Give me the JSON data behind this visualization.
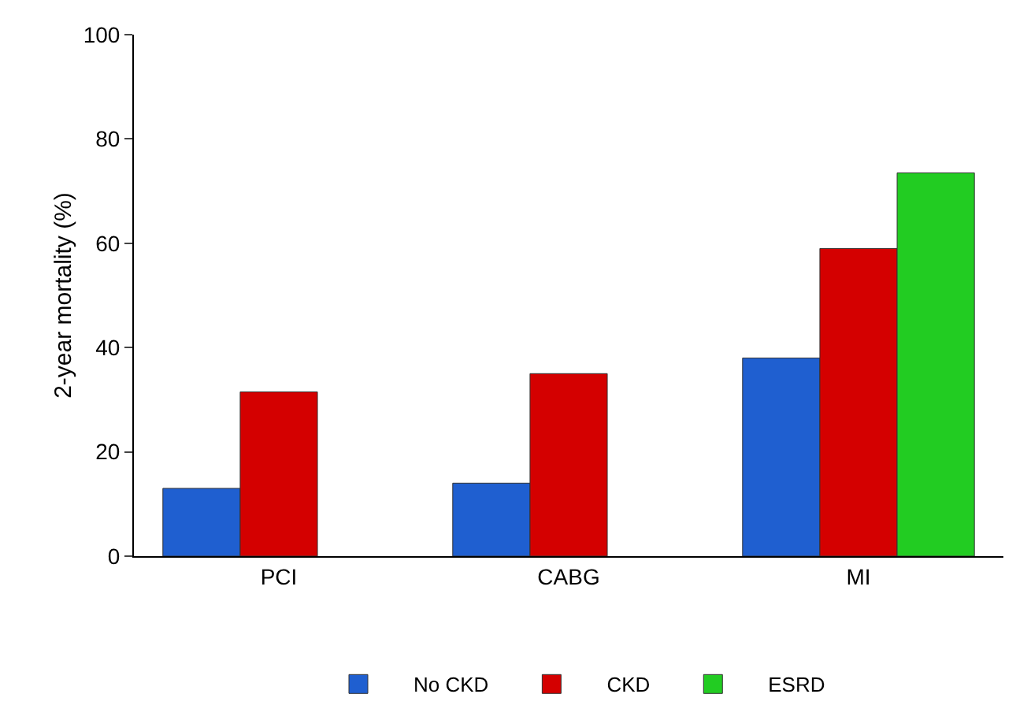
{
  "chart_data": {
    "type": "bar",
    "ylabel": "2-year mortality (%)",
    "categories": [
      "PCI",
      "CABG",
      "MI"
    ],
    "series": [
      {
        "name": "No CKD",
        "color": "#1f5fd0",
        "values": [
          13,
          14,
          38
        ]
      },
      {
        "name": "CKD",
        "color": "#d40000",
        "values": [
          31.5,
          35,
          59
        ]
      },
      {
        "name": "ESRD",
        "color": "#22cc22",
        "values": [
          null,
          null,
          73.5
        ]
      }
    ],
    "ylim": [
      0,
      100
    ],
    "yticks": [
      0,
      20,
      40,
      60,
      80,
      100
    ],
    "grid": false,
    "legend": "bottom"
  }
}
